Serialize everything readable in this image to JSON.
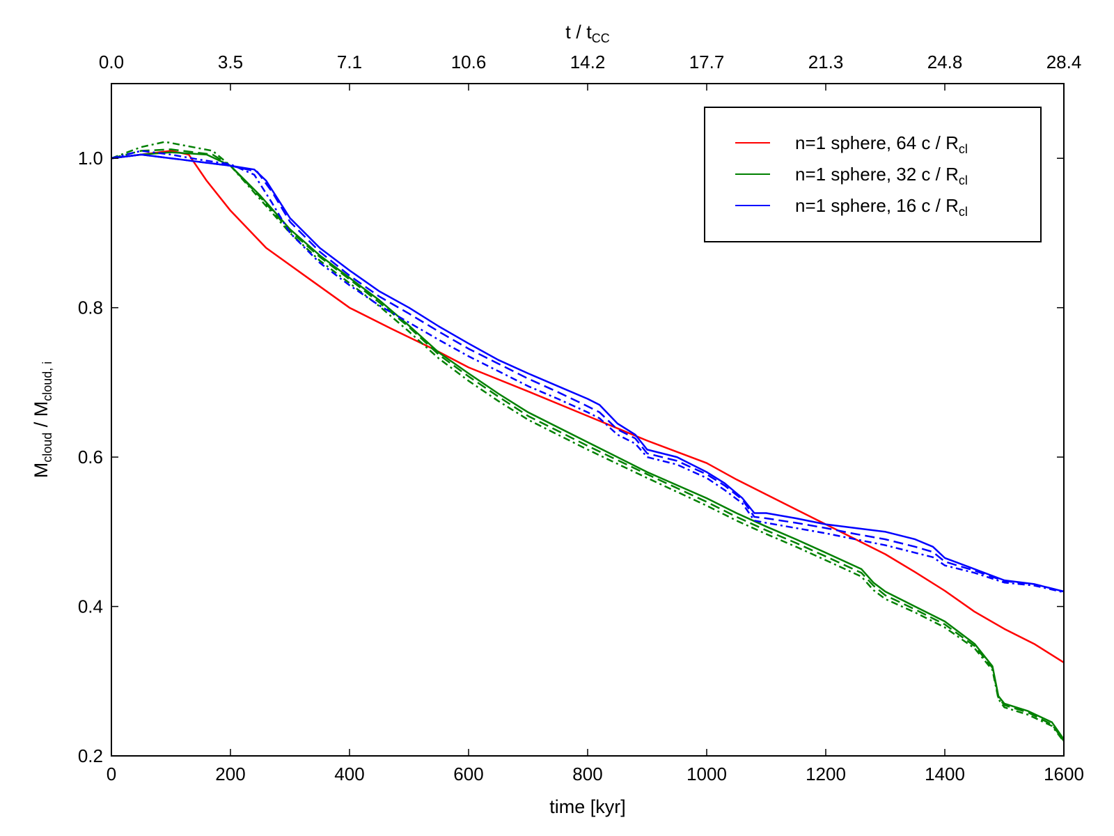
{
  "chart_data": {
    "type": "line",
    "xlabel": "time [kyr]",
    "ylabel": {
      "main1": "M",
      "sub1": "cloud",
      "main2": " / M",
      "sub2": "cloud, i"
    },
    "top_xlabel": {
      "main": "t / t",
      "sub": "CC"
    },
    "xlim": [
      0,
      1600
    ],
    "ylim": [
      0.2,
      1.1
    ],
    "xticks": [
      0,
      200,
      400,
      600,
      800,
      1000,
      1200,
      1400,
      1600
    ],
    "xtick_labels": [
      "0",
      "200",
      "400",
      "600",
      "800",
      "1000",
      "1200",
      "1400",
      "1600"
    ],
    "yticks": [
      0.2,
      0.4,
      0.6,
      0.8,
      1.0
    ],
    "ytick_labels": [
      "0.2",
      "0.4",
      "0.6",
      "0.8",
      "1.0"
    ],
    "top_xticks": [
      0,
      200,
      400,
      600,
      800,
      1000,
      1200,
      1400,
      1600
    ],
    "top_xtick_labels": [
      "0.0",
      "3.5",
      "7.1",
      "10.6",
      "14.2",
      "17.7",
      "21.3",
      "24.8",
      "28.4"
    ],
    "legend": {
      "placement": "upper-right",
      "entries": [
        {
          "main": "n=1 sphere, 64 c / R",
          "sub": "cl",
          "color": "#ff0000"
        },
        {
          "main": "n=1 sphere, 32 c / R",
          "sub": "cl",
          "color": "#008000"
        },
        {
          "main": "n=1 sphere, 16 c / R",
          "sub": "cl",
          "color": "#0000ff"
        }
      ]
    },
    "series": [
      {
        "color": "#ff0000",
        "style": "solid",
        "x": [
          0,
          50,
          100,
          130,
          160,
          200,
          260,
          330,
          400,
          470,
          540,
          600,
          700,
          800,
          900,
          1000,
          1050,
          1100,
          1150,
          1200,
          1250,
          1300,
          1350,
          1400,
          1450,
          1500,
          1550,
          1600
        ],
        "y": [
          1.0,
          1.005,
          1.01,
          1.005,
          0.97,
          0.93,
          0.88,
          0.84,
          0.8,
          0.772,
          0.745,
          0.72,
          0.688,
          0.655,
          0.622,
          0.592,
          0.57,
          0.55,
          0.53,
          0.51,
          0.49,
          0.47,
          0.446,
          0.421,
          0.393,
          0.37,
          0.35,
          0.325
        ]
      },
      {
        "color": "#008000",
        "style": "solid",
        "x": [
          0,
          50,
          100,
          160,
          200,
          250,
          300,
          350,
          400,
          450,
          500,
          550,
          600,
          650,
          700,
          800,
          900,
          1000,
          1050,
          1100,
          1150,
          1200,
          1260,
          1280,
          1300,
          1350,
          1400,
          1450,
          1480,
          1490,
          1500,
          1540,
          1580,
          1600
        ],
        "y": [
          1.0,
          1.005,
          1.008,
          1.005,
          0.99,
          0.95,
          0.905,
          0.87,
          0.84,
          0.81,
          0.776,
          0.74,
          0.712,
          0.685,
          0.66,
          0.62,
          0.58,
          0.545,
          0.525,
          0.507,
          0.49,
          0.472,
          0.45,
          0.432,
          0.42,
          0.4,
          0.38,
          0.35,
          0.32,
          0.28,
          0.27,
          0.26,
          0.245,
          0.222
        ]
      },
      {
        "color": "#008000",
        "style": "dashed",
        "x": [
          0,
          50,
          100,
          170,
          200,
          250,
          300,
          350,
          400,
          450,
          500,
          550,
          600,
          650,
          700,
          800,
          900,
          1000,
          1050,
          1100,
          1150,
          1200,
          1260,
          1280,
          1300,
          1350,
          1400,
          1450,
          1480,
          1490,
          1500,
          1540,
          1580,
          1600
        ],
        "y": [
          1.0,
          1.01,
          1.012,
          1.005,
          0.99,
          0.948,
          0.903,
          0.868,
          0.838,
          0.807,
          0.774,
          0.737,
          0.708,
          0.681,
          0.655,
          0.615,
          0.577,
          0.54,
          0.52,
          0.502,
          0.485,
          0.467,
          0.445,
          0.428,
          0.415,
          0.396,
          0.376,
          0.347,
          0.318,
          0.278,
          0.268,
          0.258,
          0.242,
          0.22
        ]
      },
      {
        "color": "#008000",
        "style": "dashdot",
        "x": [
          0,
          50,
          90,
          170,
          200,
          250,
          300,
          350,
          400,
          450,
          500,
          550,
          600,
          650,
          700,
          800,
          900,
          1000,
          1050,
          1100,
          1150,
          1200,
          1260,
          1280,
          1300,
          1350,
          1400,
          1450,
          1480,
          1490,
          1500,
          1540,
          1580,
          1600
        ],
        "y": [
          1.0,
          1.015,
          1.022,
          1.01,
          0.99,
          0.945,
          0.9,
          0.863,
          0.833,
          0.802,
          0.768,
          0.732,
          0.702,
          0.675,
          0.65,
          0.61,
          0.572,
          0.535,
          0.515,
          0.497,
          0.48,
          0.462,
          0.44,
          0.422,
          0.41,
          0.392,
          0.372,
          0.344,
          0.315,
          0.276,
          0.265,
          0.255,
          0.24,
          0.219
        ]
      },
      {
        "color": "#0000ff",
        "style": "solid",
        "x": [
          0,
          50,
          100,
          150,
          200,
          240,
          260,
          280,
          300,
          350,
          400,
          450,
          500,
          550,
          600,
          650,
          700,
          750,
          800,
          820,
          850,
          880,
          900,
          950,
          1000,
          1030,
          1060,
          1080,
          1100,
          1150,
          1200,
          1250,
          1300,
          1350,
          1380,
          1400,
          1450,
          1500,
          1550,
          1600
        ],
        "y": [
          1.0,
          1.005,
          1.0,
          0.995,
          0.99,
          0.985,
          0.97,
          0.945,
          0.92,
          0.88,
          0.85,
          0.822,
          0.8,
          0.775,
          0.752,
          0.73,
          0.712,
          0.695,
          0.678,
          0.67,
          0.645,
          0.63,
          0.61,
          0.6,
          0.58,
          0.565,
          0.545,
          0.525,
          0.525,
          0.518,
          0.51,
          0.505,
          0.5,
          0.49,
          0.48,
          0.465,
          0.45,
          0.435,
          0.43,
          0.42
        ]
      },
      {
        "color": "#0000ff",
        "style": "dashed",
        "x": [
          0,
          50,
          100,
          150,
          200,
          245,
          270,
          300,
          350,
          400,
          450,
          500,
          550,
          600,
          650,
          700,
          750,
          800,
          820,
          850,
          880,
          900,
          950,
          1000,
          1030,
          1060,
          1080,
          1100,
          1150,
          1200,
          1250,
          1300,
          1350,
          1380,
          1400,
          1450,
          1500,
          1550,
          1600
        ],
        "y": [
          1.0,
          1.005,
          1.0,
          0.995,
          0.99,
          0.982,
          0.955,
          0.915,
          0.875,
          0.843,
          0.815,
          0.792,
          0.768,
          0.745,
          0.725,
          0.705,
          0.687,
          0.668,
          0.66,
          0.637,
          0.625,
          0.605,
          0.595,
          0.577,
          0.562,
          0.543,
          0.52,
          0.518,
          0.512,
          0.505,
          0.497,
          0.49,
          0.48,
          0.473,
          0.46,
          0.448,
          0.434,
          0.43,
          0.42
        ]
      },
      {
        "color": "#0000ff",
        "style": "dashdot",
        "x": [
          0,
          50,
          100,
          150,
          200,
          240,
          270,
          300,
          350,
          400,
          450,
          500,
          550,
          600,
          650,
          700,
          750,
          800,
          820,
          850,
          880,
          900,
          950,
          1000,
          1030,
          1060,
          1080,
          1100,
          1150,
          1200,
          1250,
          1300,
          1350,
          1380,
          1400,
          1450,
          1500,
          1550,
          1600
        ],
        "y": [
          1.0,
          1.01,
          1.005,
          0.998,
          0.992,
          0.978,
          0.94,
          0.9,
          0.86,
          0.83,
          0.803,
          0.78,
          0.757,
          0.735,
          0.715,
          0.695,
          0.678,
          0.66,
          0.652,
          0.63,
          0.618,
          0.6,
          0.59,
          0.572,
          0.556,
          0.538,
          0.515,
          0.512,
          0.505,
          0.498,
          0.49,
          0.482,
          0.472,
          0.466,
          0.455,
          0.445,
          0.432,
          0.428,
          0.419
        ]
      }
    ]
  }
}
